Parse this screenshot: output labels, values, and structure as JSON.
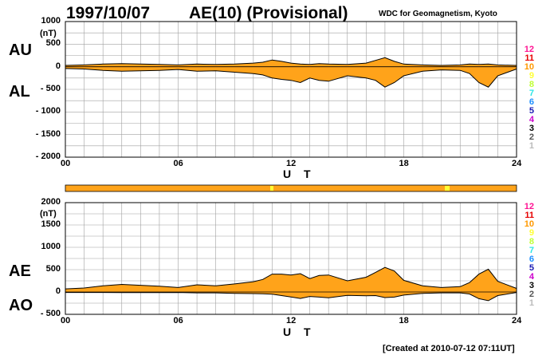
{
  "header": {
    "date": "1997/10/07",
    "title": "AE(10) (Provisional)",
    "source": "WDC for Geomagnetism, Kyoto"
  },
  "footer": {
    "created": "[Created at 2010-07-12 07:11UT]"
  },
  "colors": {
    "fill": "#ffa31a",
    "grid": "#a0a0a0",
    "line": "#000000",
    "legend": [
      "#ff1493",
      "#e60000",
      "#ff9900",
      "#ffff33",
      "#bfff33",
      "#2ee6e6",
      "#1e90ff",
      "#1a1ab3",
      "#cc00cc",
      "#000000",
      "#555555",
      "#bbbbbb"
    ]
  },
  "legend": [
    "12",
    "11",
    "10",
    "9",
    "8",
    "7",
    "6",
    "5",
    "4",
    "3",
    "2",
    "1"
  ],
  "chart_data": [
    {
      "type": "area",
      "label_upper": "AU",
      "label_lower": "AL",
      "unit": "(nT)",
      "xlabel": "U T",
      "x_ticks": [
        "00",
        "06",
        "12",
        "18",
        "24"
      ],
      "xlim": [
        0,
        24
      ],
      "y_ticks": [
        "1000",
        "500",
        "0",
        "- 500",
        "- 1000",
        "- 1500",
        "- 2000"
      ],
      "ylim": [
        -2000,
        1000
      ],
      "x": [
        0,
        1,
        2,
        3,
        4,
        5,
        6,
        7,
        8,
        9,
        10,
        10.5,
        11,
        11.5,
        12,
        12.5,
        13,
        13.5,
        14,
        15,
        16,
        16.5,
        17,
        17.5,
        18,
        19,
        20,
        21,
        21.5,
        22,
        22.5,
        23,
        24
      ],
      "series": [
        {
          "values": [
            30,
            40,
            60,
            70,
            60,
            50,
            40,
            60,
            50,
            60,
            80,
            100,
            150,
            120,
            80,
            60,
            50,
            70,
            60,
            50,
            80,
            140,
            200,
            120,
            60,
            40,
            30,
            40,
            60,
            50,
            60,
            40,
            30
          ]
        },
        {
          "values": [
            -40,
            -50,
            -80,
            -100,
            -90,
            -80,
            -60,
            -100,
            -90,
            -120,
            -150,
            -180,
            -250,
            -280,
            -300,
            -350,
            -250,
            -300,
            -320,
            -200,
            -250,
            -300,
            -450,
            -350,
            -200,
            -100,
            -70,
            -80,
            -150,
            -350,
            -450,
            -200,
            -50
          ]
        }
      ]
    },
    {
      "type": "area",
      "label_upper": "AE",
      "label_lower": "AO",
      "unit": "(nT)",
      "xlabel": "U T",
      "x_ticks": [
        "00",
        "06",
        "12",
        "18",
        "24"
      ],
      "xlim": [
        0,
        24
      ],
      "y_ticks": [
        "2000",
        "1500",
        "1000",
        "500",
        "0",
        "- 500"
      ],
      "ylim": [
        -500,
        2000
      ],
      "x": [
        0,
        1,
        2,
        3,
        4,
        5,
        6,
        7,
        8,
        9,
        10,
        10.5,
        11,
        11.5,
        12,
        12.5,
        13,
        13.5,
        14,
        15,
        16,
        16.5,
        17,
        17.5,
        18,
        19,
        20,
        21,
        21.5,
        22,
        22.5,
        23,
        24
      ],
      "series": [
        {
          "values": [
            70,
            90,
            140,
            170,
            150,
            130,
            100,
            160,
            140,
            180,
            230,
            280,
            400,
            400,
            380,
            410,
            300,
            370,
            380,
            250,
            330,
            440,
            550,
            470,
            260,
            140,
            100,
            120,
            210,
            400,
            510,
            240,
            80
          ]
        },
        {
          "values": [
            -10,
            -10,
            -10,
            -15,
            -15,
            -15,
            -10,
            -20,
            -20,
            -30,
            -35,
            -40,
            -50,
            -80,
            -110,
            -145,
            -100,
            -115,
            -130,
            -75,
            -85,
            -80,
            -125,
            -115,
            -70,
            -30,
            -20,
            -20,
            -45,
            -150,
            -195,
            -80,
            -10
          ]
        }
      ]
    }
  ]
}
